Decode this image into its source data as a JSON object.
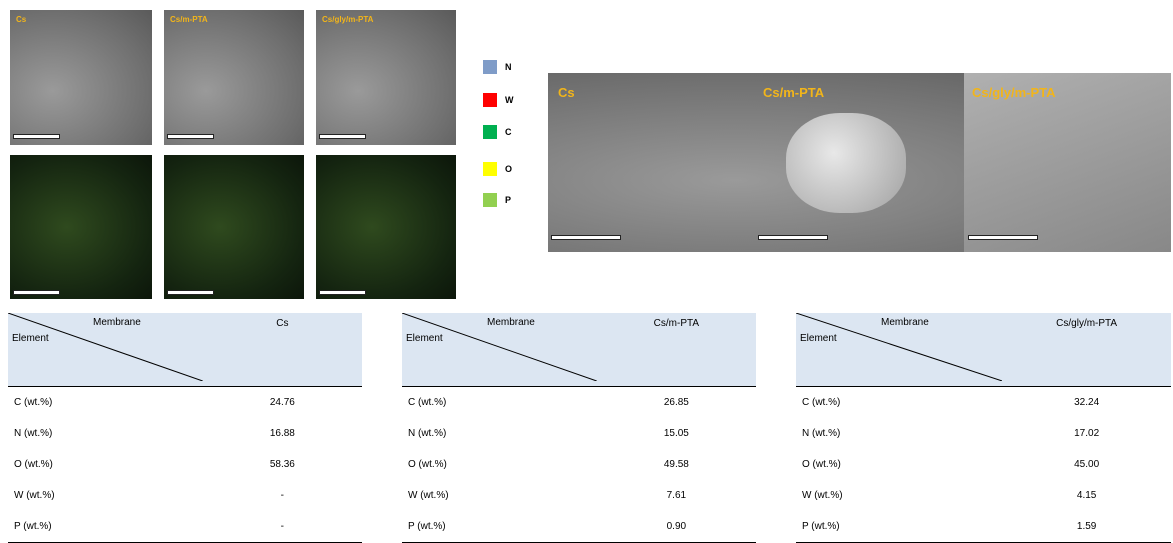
{
  "small_sem_labels": [
    "Cs",
    "Cs/m-PTA",
    "Cs/gly/m-PTA"
  ],
  "legend": [
    {
      "label": "N",
      "color": "#7f9cc8"
    },
    {
      "label": "W",
      "color": "#ff0000"
    },
    {
      "label": "C",
      "color": "#00b050"
    },
    {
      "label": "O",
      "color": "#ffff00"
    },
    {
      "label": "P",
      "color": "#92d050"
    }
  ],
  "large_sem_labels": [
    "Cs",
    "Cs/m-PTA",
    "Cs/gly/m-PTA"
  ],
  "tables": [
    {
      "membrane": "Membrane",
      "element": "Element",
      "sample": "Cs",
      "rows": [
        [
          "C (wt.%)",
          "24.76"
        ],
        [
          "N (wt.%)",
          "16.88"
        ],
        [
          "O (wt.%)",
          "58.36"
        ],
        [
          "W (wt.%)",
          "-"
        ],
        [
          "P (wt.%)",
          "-"
        ]
      ]
    },
    {
      "membrane": "Membrane",
      "element": "Element",
      "sample": "Cs/m-PTA",
      "rows": [
        [
          "C (wt.%)",
          "26.85"
        ],
        [
          "N (wt.%)",
          "15.05"
        ],
        [
          "O (wt.%)",
          "49.58"
        ],
        [
          "W (wt.%)",
          "7.61"
        ],
        [
          "P (wt.%)",
          "0.90"
        ]
      ]
    },
    {
      "membrane": "Membrane",
      "element": "Element",
      "sample": "Cs/gly/m-PTA",
      "rows": [
        [
          "C (wt.%)",
          "32.24"
        ],
        [
          "N (wt.%)",
          "17.02"
        ],
        [
          "O (wt.%)",
          "45.00"
        ],
        [
          "W (wt.%)",
          "4.15"
        ],
        [
          "P (wt.%)",
          "1.59"
        ]
      ]
    }
  ]
}
